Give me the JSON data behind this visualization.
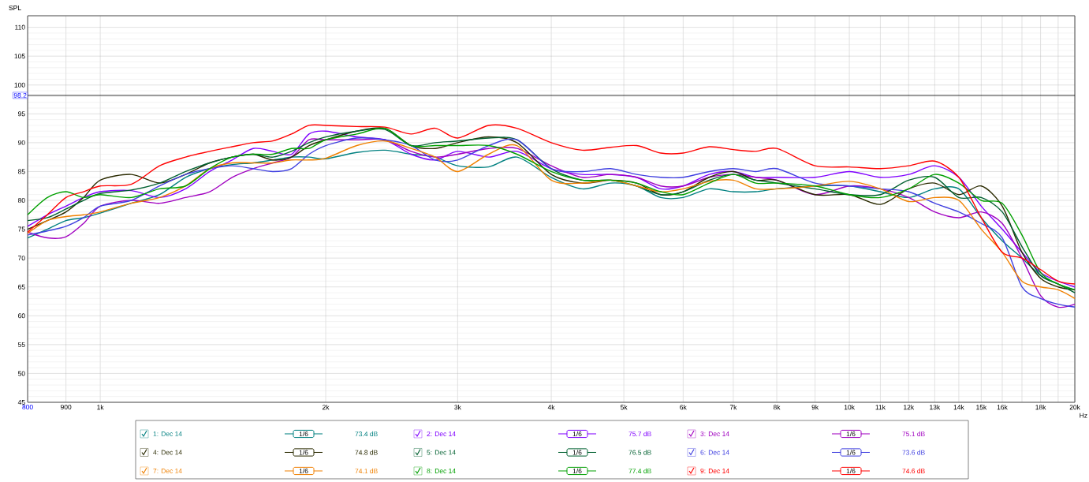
{
  "chart_data": {
    "type": "line",
    "ylabel": "SPL",
    "log": "x",
    "x": [
      800,
      850,
      900,
      950,
      1000,
      1100,
      1200,
      1300,
      1400,
      1500,
      1600,
      1700,
      1800,
      1900,
      2000,
      2200,
      2400,
      2600,
      2800,
      3000,
      3300,
      3600,
      4000,
      4400,
      4800,
      5200,
      5600,
      6000,
      6500,
      7000,
      7500,
      8000,
      9000,
      10000,
      11000,
      12000,
      13000,
      14000,
      15000,
      16000,
      17000,
      18000,
      19000,
      20000
    ],
    "series": [
      {
        "name": "1: Dec 14",
        "color": "#008080",
        "values": [
          73.5,
          75,
          76.5,
          77,
          77.8,
          79.5,
          81,
          84,
          85.5,
          86.2,
          86.5,
          87,
          87.5,
          87.5,
          87.2,
          88.3,
          88.7,
          88,
          87.5,
          86,
          85.8,
          87.5,
          84,
          82,
          83,
          82.5,
          80.5,
          80.5,
          82,
          81.5,
          81.5,
          82,
          82.5,
          82.5,
          81.5,
          80.5,
          82,
          82,
          77,
          73,
          70,
          67,
          65.5,
          64.5
        ]
      },
      {
        "name": "2: Dec 14",
        "color": "#8000ff",
        "values": [
          75.5,
          77.5,
          79,
          80.5,
          81.5,
          81.7,
          80.5,
          82,
          85,
          87,
          89,
          88.5,
          88,
          91.5,
          92,
          91,
          90.5,
          88,
          87,
          88.5,
          87.5,
          88.5,
          85.5,
          84.5,
          84.5,
          84,
          82,
          82.5,
          84.5,
          85,
          84,
          84,
          84,
          85,
          84,
          84.5,
          86,
          84,
          79,
          75,
          71,
          67.5,
          66,
          65
        ]
      },
      {
        "name": "3: Dec 14",
        "color": "#a000c0",
        "values": [
          74.5,
          73.5,
          73.7,
          76,
          79,
          80,
          79.5,
          80.5,
          81.5,
          84,
          85.5,
          86.5,
          87.5,
          90.5,
          90.5,
          90.5,
          90.5,
          88.5,
          87.5,
          88,
          89,
          89,
          86,
          84,
          84.5,
          84,
          82.5,
          82.5,
          84,
          84.5,
          84,
          83.5,
          81,
          82.5,
          82,
          80.5,
          78,
          77,
          78,
          76,
          70,
          63.5,
          61.5,
          62
        ]
      },
      {
        "name": "4: Dec 14",
        "color": "#2a2a00",
        "values": [
          75,
          76.5,
          78,
          80.5,
          83.5,
          84.5,
          83,
          84.5,
          86.5,
          87.5,
          88,
          87,
          87.5,
          89.5,
          90.5,
          92,
          92.5,
          89.5,
          89,
          90,
          91,
          90,
          84.5,
          83,
          83.5,
          83,
          81,
          81.5,
          84,
          85,
          83.5,
          83.5,
          81,
          81,
          79.3,
          82,
          83,
          81,
          82.5,
          79,
          71,
          66.5,
          65,
          64.5
        ]
      },
      {
        "name": "5: Dec 14",
        "color": "#006030",
        "values": [
          76.5,
          77,
          78.5,
          80,
          81.2,
          81.8,
          83,
          85,
          86.5,
          87.5,
          88,
          87.5,
          88.5,
          90,
          91,
          92,
          92.3,
          89.5,
          90,
          90.3,
          90.8,
          90.5,
          85.5,
          83.5,
          83.5,
          82.5,
          81,
          81.5,
          83.5,
          84.5,
          83.5,
          83,
          82,
          81,
          81,
          83.5,
          84,
          80.5,
          80.5,
          78,
          72,
          67,
          65.5,
          64
        ]
      },
      {
        "name": "6: Dec 14",
        "color": "#4040e0",
        "values": [
          74,
          74.7,
          75.5,
          77,
          79,
          80,
          82.5,
          84.5,
          85.5,
          86,
          85.5,
          85,
          85.5,
          88,
          89.5,
          90.8,
          90.5,
          89.5,
          87,
          87,
          89.5,
          90.5,
          85.5,
          85,
          85.5,
          84.5,
          84,
          84,
          85,
          85.5,
          85,
          85.5,
          83,
          82.5,
          82,
          81.5,
          79.5,
          78,
          76,
          73.5,
          65,
          63,
          62,
          61.5
        ]
      },
      {
        "name": "7: Dec 14",
        "color": "#f08000",
        "values": [
          74.3,
          76.5,
          77.2,
          77.5,
          78,
          79.5,
          80.5,
          82.5,
          85.5,
          86.5,
          86.5,
          86.5,
          87,
          87,
          87.3,
          89.5,
          90.3,
          89,
          87.5,
          85,
          88,
          89.5,
          83.5,
          83,
          83.5,
          82.5,
          81.5,
          82,
          83.3,
          83.5,
          82,
          82,
          82.5,
          83.3,
          82,
          79.8,
          80.5,
          80,
          75,
          71,
          66,
          65,
          64.5,
          63
        ]
      },
      {
        "name": "8: Dec 14",
        "color": "#00a000",
        "values": [
          77.5,
          80.5,
          81.5,
          80.5,
          81,
          80.5,
          82,
          82.5,
          85.5,
          87.5,
          88,
          88,
          89,
          89,
          90.5,
          91.5,
          92.5,
          89.5,
          89.5,
          89.5,
          89.5,
          88,
          85,
          83.5,
          83.5,
          83,
          81.5,
          81,
          83,
          84.5,
          83,
          83,
          82.5,
          81,
          80.5,
          82,
          84.5,
          83,
          80,
          79.5,
          74,
          67.5,
          65.5,
          64.5
        ]
      },
      {
        "name": "9: Dec 14",
        "color": "#ff0000",
        "values": [
          74.5,
          77.5,
          80.5,
          81.5,
          82.5,
          82.8,
          86,
          87.5,
          88.5,
          89.3,
          90,
          90.3,
          91.5,
          93,
          93,
          92.8,
          92.7,
          91.5,
          92.5,
          90.8,
          93,
          92.5,
          90,
          88.7,
          89.2,
          89.5,
          88.2,
          88.2,
          89.3,
          88.8,
          88.5,
          89,
          86,
          85.8,
          85.5,
          86,
          86.8,
          84,
          77,
          71,
          70,
          68,
          66,
          65.5
        ]
      }
    ],
    "xlim": [
      800,
      20000
    ],
    "ylim": [
      45,
      112
    ],
    "xticks": [
      800,
      900,
      {
        "value": 1000,
        "label": "1k"
      },
      {
        "value": 2000,
        "label": "2k"
      },
      {
        "value": 3000,
        "label": "3k"
      },
      {
        "value": 4000,
        "label": "4k"
      },
      {
        "value": 5000,
        "label": "5k"
      },
      {
        "value": 6000,
        "label": "6k"
      },
      {
        "value": 7000,
        "label": "7k"
      },
      {
        "value": 8000,
        "label": "8k"
      },
      {
        "value": 9000,
        "label": "9k"
      },
      {
        "value": 10000,
        "label": "10k"
      },
      {
        "value": 11000,
        "label": "11k"
      },
      {
        "value": 12000,
        "label": "12k"
      },
      {
        "value": 13000,
        "label": "13k"
      },
      {
        "value": 14000,
        "label": "14k"
      },
      {
        "value": 15000,
        "label": "15k"
      },
      {
        "value": 16000,
        "label": "16k"
      },
      {
        "value": 17000,
        "label": null
      },
      {
        "value": 18000,
        "label": "18k"
      },
      {
        "value": 19000,
        "label": null
      },
      {
        "value": 20000,
        "label": "20k"
      }
    ],
    "xlabel": "Hz",
    "yticks": [
      45,
      50,
      55,
      60,
      65,
      70,
      75,
      80,
      85,
      90,
      95,
      100,
      105,
      110
    ],
    "grid": true,
    "legend": "bottom",
    "ref_lines": [
      {
        "axis": "y",
        "value": 98.2,
        "label": "98.2",
        "color": "#000000"
      }
    ],
    "annotations": [
      "1/6",
      "73.4 dB",
      "1/6",
      "75.7 dB",
      "1/6",
      "75.1 dB",
      "1/6",
      "74.8 dB",
      "1/6",
      "76.5 dB",
      "1/6",
      "73.6 dB",
      "1/6",
      "74.1 dB",
      "1/6",
      "77.4 dB",
      "1/6",
      "74.6 dB"
    ]
  }
}
